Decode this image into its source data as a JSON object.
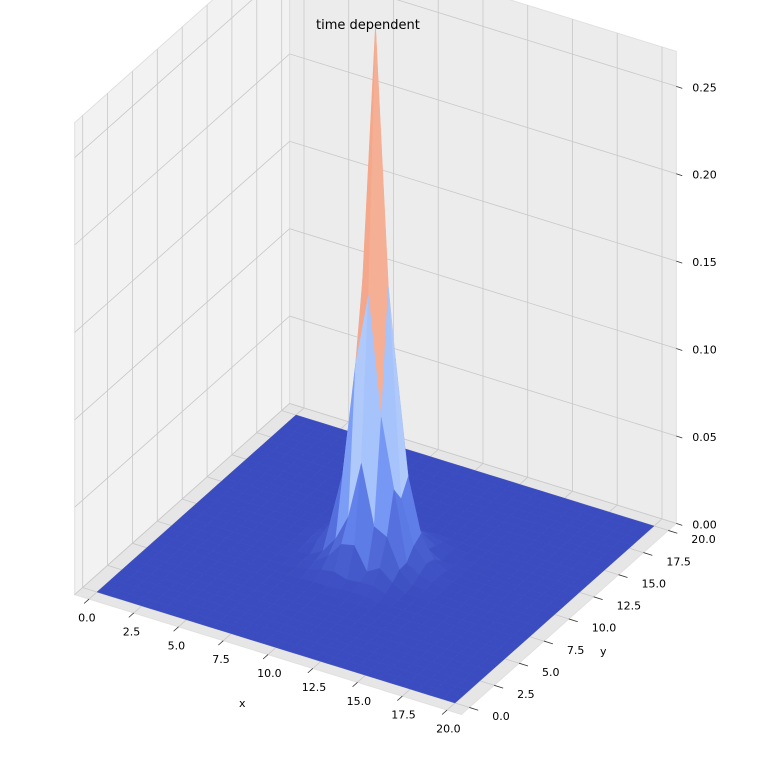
{
  "chart_data": {
    "type": "surface3d",
    "title": "time dependent",
    "xlabel": "x",
    "ylabel": "y",
    "zlabel": "",
    "xlim": [
      0,
      20
    ],
    "ylim": [
      0,
      20
    ],
    "zlim": [
      0,
      0.27
    ],
    "x_ticks": [
      "0.0",
      "2.5",
      "5.0",
      "7.5",
      "10.0",
      "12.5",
      "15.0",
      "17.5",
      "20.0"
    ],
    "y_ticks": [
      "0.0",
      "2.5",
      "5.0",
      "7.5",
      "10.0",
      "12.5",
      "15.0",
      "17.5",
      "20.0"
    ],
    "z_ticks": [
      "0.00",
      "0.05",
      "0.10",
      "0.15",
      "0.20",
      "0.25"
    ],
    "colormap": "coolwarm",
    "grid": true,
    "peak": {
      "x": 10,
      "y": 10,
      "z": 0.26
    },
    "base_color": "#3b4cc0"
  }
}
